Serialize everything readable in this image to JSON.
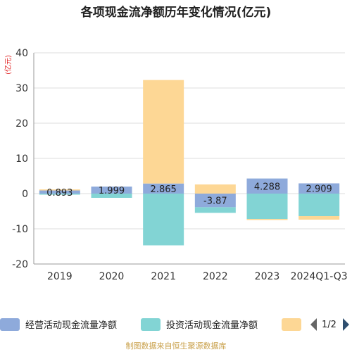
{
  "chart_data": {
    "type": "bar",
    "stacked": true,
    "title": "各项现金流净额历年变化情况(亿元)",
    "unit_label": "(亿元)",
    "categories": [
      "2019",
      "2020",
      "2021",
      "2022",
      "2023",
      "2024Q1-Q3"
    ],
    "ylim": [
      -20,
      40
    ],
    "yticks": [
      -20,
      -10,
      0,
      10,
      20,
      30,
      40
    ],
    "grid": true,
    "series": [
      {
        "name": "经营活动现金流量净额",
        "color": "#8eaadb",
        "values": [
          0.893,
          1.999,
          2.865,
          -3.87,
          4.288,
          2.909
        ]
      },
      {
        "name": "投资活动现金流量净额",
        "color": "#82d4d4",
        "values": [
          -0.3,
          -1.2,
          -14.7,
          -1.6,
          -7.2,
          -6.4
        ]
      },
      {
        "name": "",
        "color": "#fdd795",
        "values": [
          0.3,
          0,
          29.4,
          2.6,
          -0.3,
          -1.0
        ]
      }
    ],
    "data_labels": [
      "0.893",
      "1.999",
      "2.865",
      "-3.87",
      "4.288",
      "2.909"
    ],
    "legend": {
      "position": "bottom",
      "page": "1/2"
    },
    "source": "制图数据来自恒生聚源数据库"
  }
}
